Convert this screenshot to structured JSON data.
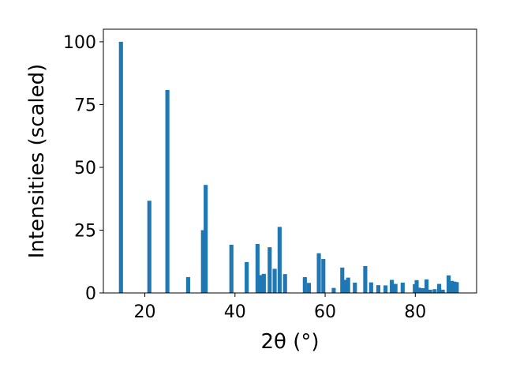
{
  "chart_data": {
    "type": "bar",
    "xlabel": "2θ (°)",
    "ylabel": "Intensities (scaled)",
    "xlim": [
      10.8,
      93.6
    ],
    "ylim": [
      0,
      105
    ],
    "xticks": [
      20,
      40,
      60,
      80
    ],
    "yticks": [
      0,
      25,
      50,
      75,
      100
    ],
    "bar_color": "#1f77b4",
    "grid": false,
    "bar_width": 0.9,
    "x": [
      14.7,
      21.0,
      25.0,
      29.6,
      32.9,
      33.5,
      39.2,
      42.6,
      45.0,
      45.6,
      46.4,
      47.7,
      48.8,
      49.9,
      51.1,
      55.5,
      56.4,
      58.6,
      59.6,
      61.9,
      63.8,
      64.6,
      65.1,
      66.6,
      68.9,
      70.2,
      71.8,
      73.4,
      74.8,
      75.6,
      77.2,
      79.9,
      80.3,
      80.8,
      81.6,
      82.5,
      83.3,
      84.3,
      85.3,
      86.1,
      87.4,
      88.1,
      88.7,
      89.2
    ],
    "values": [
      100,
      36.7,
      80.8,
      6.3,
      25.0,
      43.0,
      19.2,
      12.3,
      19.5,
      7.1,
      7.6,
      18.2,
      9.6,
      26.3,
      7.5,
      6.3,
      4.0,
      15.8,
      13.5,
      2.0,
      10.1,
      5.2,
      6.1,
      4.1,
      10.7,
      4.2,
      3.1,
      3.0,
      5.2,
      3.6,
      4.1,
      3.5,
      5.1,
      2.1,
      1.9,
      5.4,
      1.3,
      1.5,
      3.6,
      1.3,
      7.0,
      4.8,
      4.5,
      4.3
    ]
  }
}
